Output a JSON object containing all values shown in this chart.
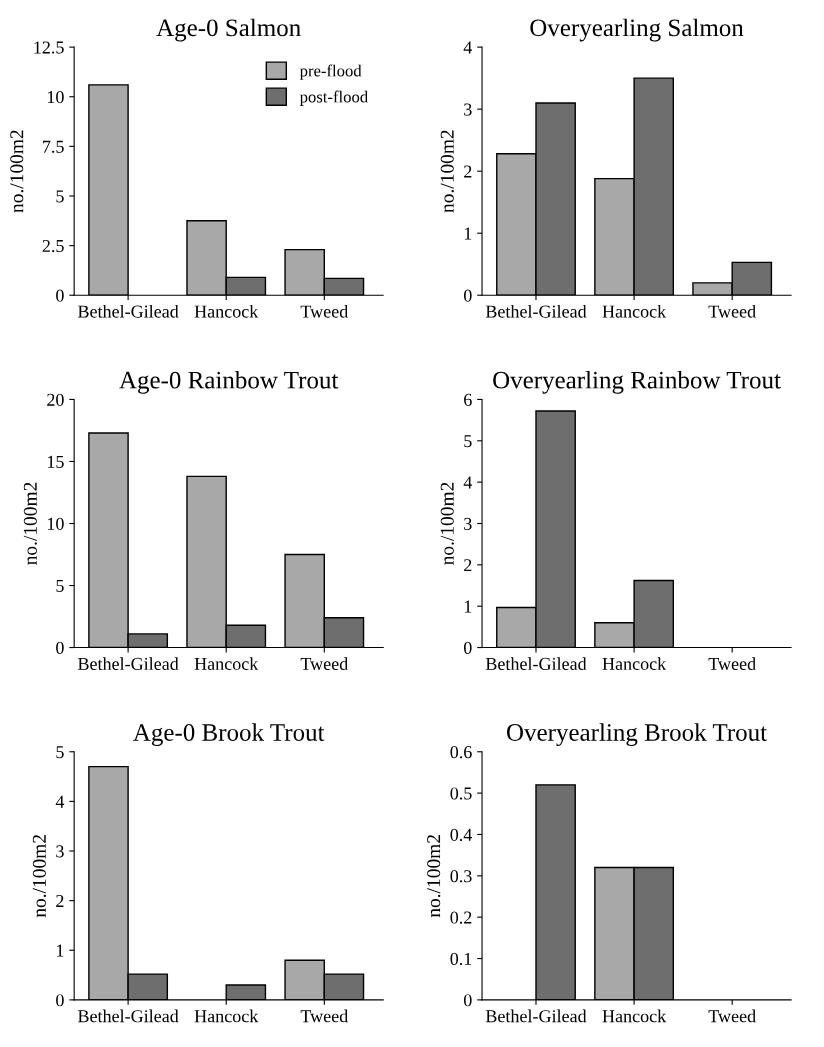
{
  "chart_data": [
    {
      "type": "bar",
      "title": "Age-0 Salmon",
      "ylabel": "no./100m2",
      "categories": [
        "Bethel-Gilead",
        "Hancock",
        "Tweed"
      ],
      "ylim": [
        0,
        12.5
      ],
      "yticks": [
        0,
        2.5,
        5,
        7.5,
        10,
        12.5
      ],
      "legend": "top right",
      "series": [
        {
          "name": "pre-flood",
          "color": "#a8a8a8",
          "values": [
            10.6,
            3.75,
            2.3
          ]
        },
        {
          "name": "post-flood",
          "color": "#6e6e6e",
          "values": [
            0,
            0.9,
            0.85
          ]
        }
      ]
    },
    {
      "type": "bar",
      "title": "Overyearling Salmon",
      "ylabel": "no./100m2",
      "categories": [
        "Bethel-Gilead",
        "Hancock",
        "Tweed"
      ],
      "ylim": [
        0,
        4
      ],
      "yticks": [
        0,
        1,
        2,
        3,
        4
      ],
      "series": [
        {
          "color": "#a8a8a8",
          "values": [
            2.28,
            1.88,
            0.2
          ]
        },
        {
          "color": "#6e6e6e",
          "values": [
            3.1,
            3.5,
            0.53
          ]
        }
      ]
    },
    {
      "type": "bar",
      "title": "Age-0 Rainbow Trout",
      "ylabel": "no./100m2",
      "categories": [
        "Bethel-Gilead",
        "Hancock",
        "Tweed"
      ],
      "ylim": [
        0,
        20
      ],
      "yticks": [
        0,
        5,
        10,
        15,
        20
      ],
      "series": [
        {
          "color": "#a8a8a8",
          "values": [
            17.3,
            13.8,
            7.5
          ]
        },
        {
          "color": "#6e6e6e",
          "values": [
            1.1,
            1.8,
            2.4
          ]
        }
      ]
    },
    {
      "type": "bar",
      "title": "Overyearling Rainbow Trout",
      "ylabel": "no./100m2",
      "categories": [
        "Bethel-Gilead",
        "Hancock",
        "Tweed"
      ],
      "ylim": [
        0,
        6
      ],
      "yticks": [
        0,
        1,
        2,
        3,
        4,
        5,
        6
      ],
      "series": [
        {
          "color": "#a8a8a8",
          "values": [
            0.97,
            0.6,
            0
          ]
        },
        {
          "color": "#6e6e6e",
          "values": [
            5.72,
            1.62,
            0
          ]
        }
      ]
    },
    {
      "type": "bar",
      "title": "Age-0 Brook Trout",
      "ylabel": "no./100m2",
      "categories": [
        "Bethel-Gilead",
        "Hancock",
        "Tweed"
      ],
      "ylim": [
        0,
        5
      ],
      "yticks": [
        0,
        1,
        2,
        3,
        4,
        5
      ],
      "series": [
        {
          "color": "#a8a8a8",
          "values": [
            4.7,
            0,
            0.8
          ]
        },
        {
          "color": "#6e6e6e",
          "values": [
            0.52,
            0.3,
            0.52
          ]
        }
      ]
    },
    {
      "type": "bar",
      "title": "Overyearling Brook Trout",
      "ylabel": "no./100m2",
      "categories": [
        "Bethel-Gilead",
        "Hancock",
        "Tweed"
      ],
      "ylim": [
        0,
        0.6
      ],
      "yticks": [
        0,
        0.1,
        0.2,
        0.3,
        0.4,
        0.5,
        0.6
      ],
      "series": [
        {
          "color": "#a8a8a8",
          "values": [
            0,
            0.32,
            0
          ]
        },
        {
          "color": "#6e6e6e",
          "values": [
            0.52,
            0.32,
            0
          ]
        }
      ]
    }
  ]
}
